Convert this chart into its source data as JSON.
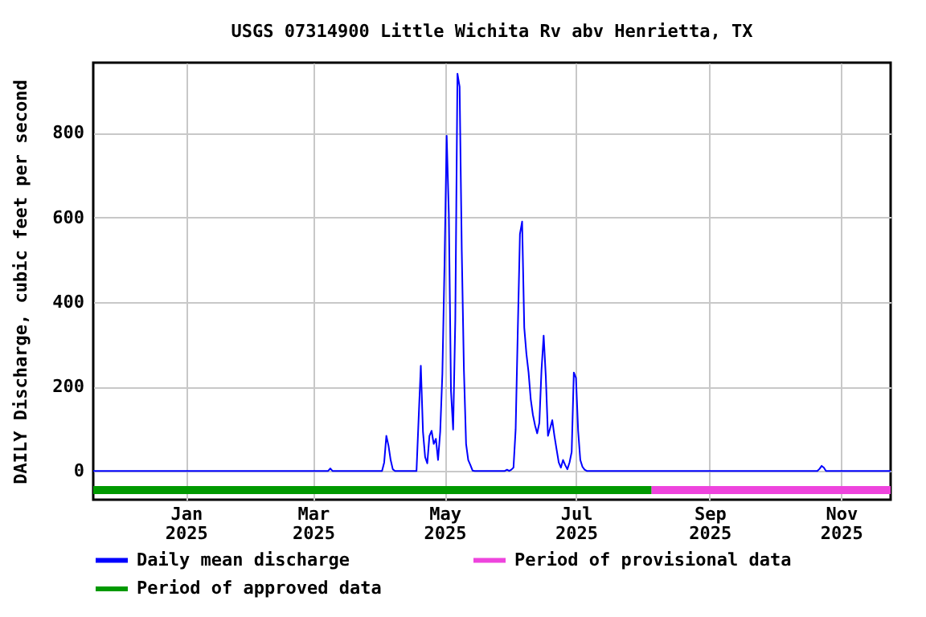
{
  "chart_data": {
    "type": "line",
    "title": "USGS 07314900 Little Wichita Rv abv Henrietta, TX",
    "ylabel": "DAILY Discharge, cubic feet per second",
    "xlim": [
      "2024-11-19",
      "2025-11-24"
    ],
    "xticks": [
      {
        "value": "2025-01-01",
        "label": "Jan\n2025"
      },
      {
        "value": "2025-03-01",
        "label": "Mar\n2025"
      },
      {
        "value": "2025-05-01",
        "label": "May\n2025"
      },
      {
        "value": "2025-07-01",
        "label": "Jul\n2025"
      },
      {
        "value": "2025-09-01",
        "label": "Sep\n2025"
      },
      {
        "value": "2025-11-01",
        "label": "Nov\n2025"
      }
    ],
    "ylim": [
      -68,
      966
    ],
    "yticks": [
      0,
      200,
      400,
      600,
      800
    ],
    "grid": true,
    "legend": "bottom",
    "series": [
      {
        "name": "Daily mean discharge",
        "color": "#0000ff",
        "x": [
          "2024-11-19",
          "2025-03-08",
          "2025-03-09",
          "2025-03-10",
          "2025-04-02",
          "2025-04-03",
          "2025-04-04",
          "2025-04-05",
          "2025-04-06",
          "2025-04-07",
          "2025-04-08",
          "2025-04-18",
          "2025-04-19",
          "2025-04-20",
          "2025-04-21",
          "2025-04-22",
          "2025-04-23",
          "2025-04-24",
          "2025-04-25",
          "2025-04-26",
          "2025-04-27",
          "2025-04-28",
          "2025-04-29",
          "2025-04-30",
          "2025-05-01",
          "2025-05-02",
          "2025-05-03",
          "2025-05-04",
          "2025-05-05",
          "2025-05-06",
          "2025-05-07",
          "2025-05-08",
          "2025-05-09",
          "2025-05-10",
          "2025-05-11",
          "2025-05-12",
          "2025-05-13",
          "2025-05-14",
          "2025-05-15",
          "2025-05-29",
          "2025-05-30",
          "2025-05-31",
          "2025-06-01",
          "2025-06-02",
          "2025-06-03",
          "2025-06-04",
          "2025-06-05",
          "2025-06-06",
          "2025-06-07",
          "2025-06-08",
          "2025-06-09",
          "2025-06-10",
          "2025-06-11",
          "2025-06-12",
          "2025-06-13",
          "2025-06-14",
          "2025-06-15",
          "2025-06-16",
          "2025-06-17",
          "2025-06-18",
          "2025-06-19",
          "2025-06-20",
          "2025-06-21",
          "2025-06-22",
          "2025-06-23",
          "2025-06-24",
          "2025-06-25",
          "2025-06-26",
          "2025-06-27",
          "2025-06-28",
          "2025-06-29",
          "2025-06-30",
          "2025-07-01",
          "2025-07-02",
          "2025-07-03",
          "2025-07-04",
          "2025-07-05",
          "2025-07-06",
          "2025-10-21",
          "2025-10-22",
          "2025-10-23",
          "2025-10-24",
          "2025-10-25",
          "2025-11-24"
        ],
        "values": [
          0,
          0,
          6,
          0,
          0,
          20,
          83,
          60,
          26,
          4,
          0,
          0,
          126,
          249,
          93,
          33,
          18,
          83,
          95,
          64,
          76,
          26,
          93,
          230,
          489,
          793,
          608,
          189,
          98,
          358,
          940,
          909,
          521,
          239,
          64,
          26,
          14,
          1,
          0,
          0,
          3,
          0,
          3,
          8,
          98,
          333,
          561,
          590,
          339,
          277,
          233,
          170,
          133,
          108,
          89,
          114,
          239,
          320,
          223,
          83,
          101,
          120,
          83,
          51,
          20,
          8,
          26,
          14,
          4,
          20,
          45,
          233,
          220,
          95,
          26,
          10,
          3,
          0,
          0,
          5,
          12,
          8,
          0,
          0
        ]
      },
      {
        "name": "Period of provisional data",
        "color": "#ee44dd",
        "x": [
          "2025-08-05",
          "2025-11-24"
        ],
        "values": [
          -45,
          -45
        ]
      },
      {
        "name": "Period of approved data",
        "color": "#009900",
        "x": [
          "2024-11-19",
          "2025-08-05"
        ],
        "values": [
          -45,
          -45
        ]
      }
    ]
  }
}
